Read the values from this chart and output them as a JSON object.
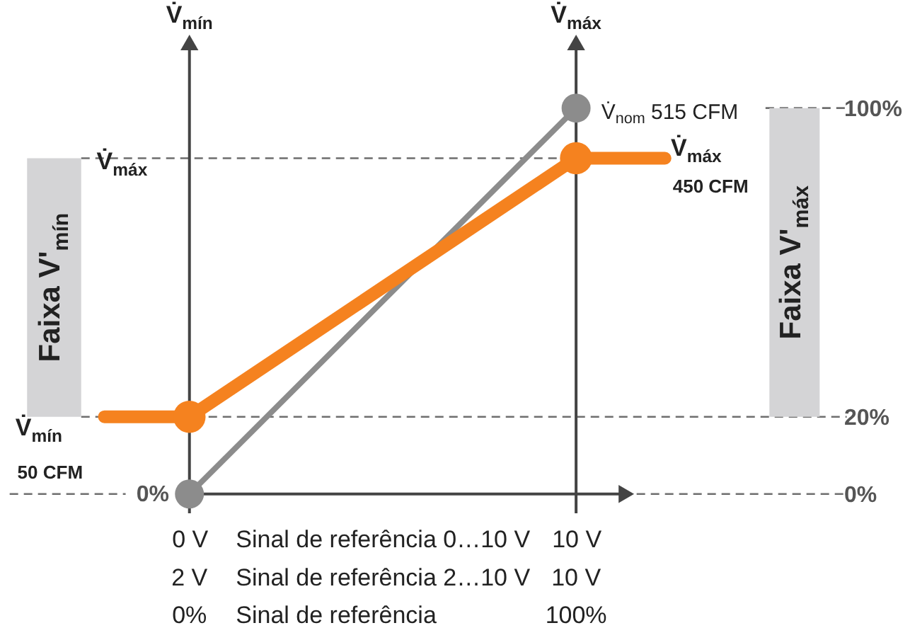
{
  "chart_data": {
    "type": "line",
    "xlim": [
      -4.9,
      18.6
    ],
    "ylim": [
      -36,
      128
    ],
    "xticks": [
      {
        "value": 0,
        "label": "0 V"
      },
      {
        "value": 10,
        "label": "10 V"
      }
    ],
    "yticks": [
      {
        "value": 0,
        "label": "0%"
      },
      {
        "value": 20,
        "label": "20%"
      },
      {
        "value": 100,
        "label": "100%"
      }
    ],
    "marker": "circle",
    "line_style": "solid",
    "series": [
      {
        "color": "#8c8c8c",
        "x": [
          0,
          10
        ],
        "values": [
          0,
          100
        ]
      },
      {
        "color": "#f5821f",
        "x": [
          -2.2,
          0,
          10,
          12.3
        ],
        "values": [
          20,
          20,
          87,
          87
        ]
      }
    ],
    "ref_lines": [
      {
        "axis": "y",
        "value": 0,
        "color": "#6e6e6e",
        "line_style": "dashed"
      },
      {
        "axis": "y",
        "value": 20,
        "label": "V̇$_{mín}$",
        "color": "#6e6e6e",
        "line_style": "dashed"
      },
      {
        "axis": "y",
        "value": 87,
        "label": "V̇$_{máx}$",
        "color": "#6e6e6e",
        "line_style": "dashed"
      },
      {
        "axis": "y",
        "value": 100,
        "color": "#6e6e6e",
        "line_style": "dashed"
      },
      {
        "axis": "x",
        "value": 0,
        "label": "V̇$_{mín}$",
        "color": "#444444",
        "line_style": "solid"
      },
      {
        "axis": "x",
        "value": 10,
        "label": "V̇$_{máx}$",
        "color": "#444444",
        "line_style": "solid"
      }
    ],
    "bands": [
      {
        "axis": "y",
        "from": 20,
        "to": 87,
        "label": "Faixa V'$_{mín}$",
        "color": "#d4d4d6"
      },
      {
        "axis": "y",
        "from": 20,
        "to": 100,
        "label": "Faixa V'$_{máx}$",
        "color": "#d4d4d6"
      }
    ],
    "annotations": [
      "0%",
      "50 CFM",
      "450 CFM",
      "2 V",
      "Sinal de referência 0…10 V",
      "Sinal de referência 2…10 V",
      "10 V",
      "0%",
      "Sinal de referência",
      "100%",
      "V̇$_{máx}$",
      {
        "text": "V̇$_{nom}$ 515 CFM",
        "x": 10,
        "y": 100
      }
    ]
  }
}
